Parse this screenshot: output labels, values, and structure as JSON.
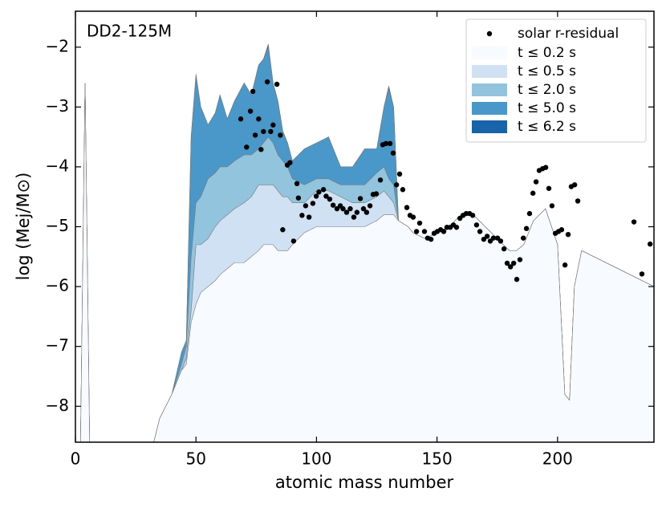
{
  "chart_data": {
    "type": "area",
    "annotation": "DD2-125M",
    "xlabel": "atomic mass number",
    "ylabel": "log (Mej/M⊙)",
    "xlim": [
      0,
      240
    ],
    "ylim": [
      -8.6,
      -1.4
    ],
    "xticks": [
      0,
      50,
      100,
      150,
      200
    ],
    "yticks": [
      {
        "value": -8,
        "label": "−8"
      },
      {
        "value": -7,
        "label": "−7"
      },
      {
        "value": -6,
        "label": "−6"
      },
      {
        "value": -5,
        "label": "−5"
      },
      {
        "value": -4,
        "label": "−4"
      },
      {
        "value": -3,
        "label": "−3"
      },
      {
        "value": -2,
        "label": "−2"
      }
    ],
    "legend": "upper right",
    "x": [
      2,
      4,
      6,
      10,
      15,
      20,
      25,
      30,
      35,
      40,
      44,
      46,
      48,
      50,
      52,
      55,
      58,
      60,
      63,
      66,
      70,
      73,
      76,
      78,
      80,
      82,
      84,
      86,
      88,
      90,
      95,
      100,
      105,
      110,
      115,
      120,
      125,
      128,
      130,
      132,
      134,
      138,
      140,
      145,
      150,
      155,
      160,
      165,
      170,
      175,
      180,
      183,
      186,
      190,
      195,
      200,
      203,
      205,
      207,
      210,
      240
    ],
    "series": [
      {
        "name": "t ≤ 0.2 s",
        "color": "#f7fbff",
        "values": [
          -9,
          -2.6,
          -9,
          -9,
          -9,
          -9,
          -9,
          -9,
          -8.2,
          -7.8,
          -7.4,
          -7.3,
          -6.6,
          -6.3,
          -6.1,
          -6.0,
          -5.9,
          -5.8,
          -5.7,
          -5.6,
          -5.6,
          -5.5,
          -5.4,
          -5.3,
          -5.3,
          -5.3,
          -5.4,
          -5.4,
          -5.4,
          -5.3,
          -5.1,
          -5.0,
          -5.0,
          -5.0,
          -5.0,
          -5.0,
          -4.9,
          -4.8,
          -4.8,
          -4.8,
          -4.9,
          -5.0,
          -5.1,
          -5.2,
          -5.1,
          -5.0,
          -4.8,
          -4.8,
          -5.0,
          -5.2,
          -5.4,
          -5.4,
          -5.3,
          -4.9,
          -4.7,
          -5.3,
          -7.8,
          -7.9,
          -6.0,
          -5.4,
          -6.0
        ]
      },
      {
        "name": "t ≤ 0.5 s",
        "color": "#cfe1f2",
        "values": [
          -9,
          -2.6,
          -9,
          -9,
          -9,
          -9,
          -9,
          -9,
          -8.2,
          -7.8,
          -7.4,
          -7.2,
          -6.4,
          -5.3,
          -5.3,
          -5.2,
          -5.0,
          -4.9,
          -4.8,
          -4.7,
          -4.6,
          -4.5,
          -4.3,
          -4.3,
          -4.3,
          -4.3,
          -4.4,
          -4.5,
          -4.5,
          -4.6,
          -4.6,
          -4.4,
          -4.4,
          -4.5,
          -4.6,
          -4.6,
          -4.5,
          -4.4,
          -4.5,
          -4.6,
          -4.9,
          -5.0,
          -5.1,
          -5.2,
          -5.1,
          -5.0,
          -4.8,
          -4.8,
          -5.0,
          -5.2,
          -5.4,
          -5.4,
          -5.3,
          -4.9,
          -4.7,
          -5.3,
          -7.8,
          -7.9,
          -6.0,
          -5.4,
          -6.0
        ]
      },
      {
        "name": "t ≤ 2.0 s",
        "color": "#93c4de",
        "values": [
          -9,
          -2.6,
          -9,
          -9,
          -9,
          -9,
          -9,
          -9,
          -8.2,
          -7.8,
          -7.3,
          -7.0,
          -5.5,
          -4.6,
          -4.5,
          -4.2,
          -4.1,
          -4.0,
          -4.0,
          -3.9,
          -3.8,
          -3.8,
          -3.7,
          -3.6,
          -3.5,
          -3.6,
          -3.8,
          -3.9,
          -4.0,
          -4.2,
          -4.3,
          -4.2,
          -4.2,
          -4.3,
          -4.3,
          -4.3,
          -4.1,
          -4.0,
          -4.2,
          -4.3,
          -4.9,
          -5.0,
          -5.1,
          -5.2,
          -5.1,
          -5.0,
          -4.8,
          -4.8,
          -5.0,
          -5.2,
          -5.4,
          -5.4,
          -5.3,
          -4.9,
          -4.7,
          -5.3,
          -7.8,
          -7.9,
          -6.0,
          -5.4,
          -6.0
        ]
      },
      {
        "name": "t ≤ 5.0 s",
        "color": "#4a98c9",
        "values": [
          -9,
          -2.6,
          -9,
          -9,
          -9,
          -9,
          -9,
          -9,
          -8.2,
          -7.8,
          -7.1,
          -6.9,
          -3.5,
          -2.5,
          -3.0,
          -3.3,
          -3.1,
          -2.8,
          -3.2,
          -2.9,
          -2.6,
          -2.8,
          -2.3,
          -2.2,
          -2.0,
          -2.6,
          -2.9,
          -3.4,
          -3.6,
          -3.9,
          -3.7,
          -3.6,
          -3.5,
          -4.0,
          -4.0,
          -3.7,
          -3.7,
          -3.0,
          -2.7,
          -3.0,
          -4.9,
          -5.0,
          -5.1,
          -5.2,
          -5.1,
          -5.0,
          -4.8,
          -4.8,
          -5.0,
          -5.2,
          -5.4,
          -5.4,
          -5.3,
          -4.9,
          -4.7,
          -5.3,
          -7.8,
          -7.9,
          -6.0,
          -5.4,
          -6.0
        ]
      },
      {
        "name": "t ≤ 6.2 s",
        "color": "#1764ab",
        "values": [
          -9,
          -2.6,
          -9,
          -9,
          -9,
          -9,
          -9,
          -9,
          -8.2,
          -7.8,
          -7.1,
          -6.9,
          -3.5,
          -2.45,
          -3.0,
          -3.3,
          -3.1,
          -2.8,
          -3.2,
          -2.9,
          -2.6,
          -2.8,
          -2.3,
          -2.2,
          -1.95,
          -2.6,
          -2.9,
          -3.4,
          -3.6,
          -3.9,
          -3.7,
          -3.6,
          -3.5,
          -4.0,
          -4.0,
          -3.7,
          -3.7,
          -3.0,
          -2.65,
          -3.0,
          -4.9,
          -5.0,
          -5.1,
          -5.2,
          -5.1,
          -5.0,
          -4.8,
          -4.8,
          -5.0,
          -5.2,
          -5.4,
          -5.4,
          -5.3,
          -4.9,
          -4.7,
          -5.3,
          -7.8,
          -7.9,
          -6.0,
          -5.4,
          -6.0
        ]
      }
    ],
    "scatter": {
      "name": "solar r-residual",
      "color": "#000000",
      "x": [
        68.6,
        71,
        72.6,
        73.6,
        74.6,
        76,
        77,
        78,
        79.6,
        81,
        82,
        83.6,
        85,
        86,
        87.9,
        89,
        90.5,
        91.9,
        92.5,
        94,
        95.5,
        96.9,
        98.5,
        99.9,
        101,
        102.9,
        104,
        105.5,
        106.9,
        108.5,
        109.9,
        111,
        112.5,
        114,
        115.5,
        116.8,
        118.2,
        119.5,
        120.8,
        122.2,
        123.5,
        124.8,
        126.5,
        127.5,
        128.8,
        130.5,
        131.8,
        133.2,
        134.5,
        135.8,
        137.5,
        138.8,
        140.1,
        141.5,
        142.8,
        144.8,
        146.1,
        147.5,
        148.8,
        150.1,
        151.5,
        152.8,
        154.1,
        155.5,
        156.8,
        158.1,
        159.5,
        160.8,
        162.1,
        163.5,
        164.8,
        166.4,
        167.8,
        169.4,
        170.8,
        172.1,
        173.4,
        175.1,
        176.4,
        177.8,
        179.1,
        180.5,
        181.8,
        183.1,
        184.4,
        185.8,
        187.1,
        188.4,
        189.8,
        191.1,
        192.4,
        193.8,
        195.1,
        196.4,
        197.7,
        199.1,
        200.4,
        201.7,
        203.1,
        204.4,
        205.7,
        207.1,
        208.4,
        231.7,
        235,
        238.4
      ],
      "y": [
        -3.2,
        -3.67,
        -3.07,
        -2.74,
        -3.47,
        -3.2,
        -3.71,
        -3.41,
        -2.58,
        -3.41,
        -3.3,
        -2.62,
        -3.47,
        -5.05,
        -3.97,
        -3.93,
        -5.24,
        -4.28,
        -4.52,
        -4.81,
        -4.65,
        -4.84,
        -4.61,
        -4.49,
        -4.42,
        -4.38,
        -4.49,
        -4.54,
        -4.64,
        -4.7,
        -4.65,
        -4.7,
        -4.76,
        -4.7,
        -4.84,
        -4.76,
        -4.53,
        -4.7,
        -4.76,
        -4.65,
        -4.46,
        -4.45,
        -4.22,
        -3.63,
        -3.61,
        -3.61,
        -3.77,
        -4.3,
        -4.12,
        -4.38,
        -4.68,
        -4.81,
        -4.84,
        -5.08,
        -4.94,
        -5.08,
        -5.19,
        -5.21,
        -5.11,
        -5.08,
        -5.05,
        -5.08,
        -5.01,
        -5.01,
        -4.97,
        -5.01,
        -4.86,
        -4.81,
        -4.78,
        -4.78,
        -4.81,
        -4.97,
        -5.08,
        -5.21,
        -5.16,
        -5.24,
        -5.19,
        -5.19,
        -5.24,
        -5.37,
        -5.61,
        -5.67,
        -5.61,
        -5.88,
        -5.55,
        -5.19,
        -5.03,
        -4.78,
        -4.44,
        -4.25,
        -4.06,
        -4.03,
        -4.01,
        -4.36,
        -4.65,
        -5.11,
        -5.08,
        -5.05,
        -5.64,
        -5.13,
        -4.33,
        -4.3,
        -4.57,
        -4.92,
        -5.79,
        -5.29
      ]
    }
  }
}
